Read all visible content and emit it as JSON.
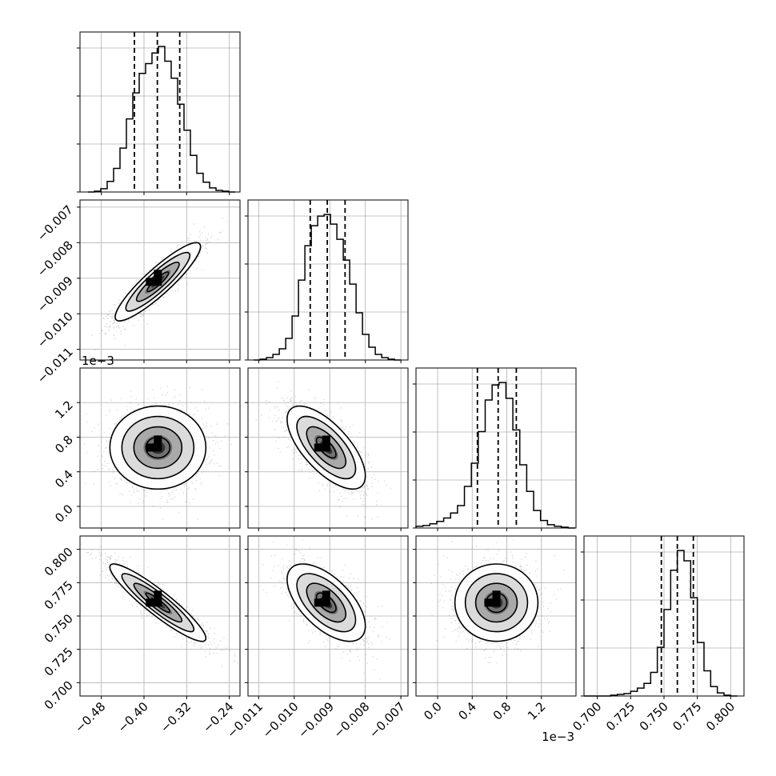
{
  "chart_data": {
    "type": "corner",
    "parameters": [
      {
        "id": "p1",
        "range": [
          -0.52,
          -0.22
        ],
        "ticks": [
          -0.48,
          -0.4,
          -0.32,
          -0.24
        ],
        "tick_labels": [
          "−0.48",
          "−0.40",
          "−0.32",
          "−0.24"
        ],
        "offset_label": ""
      },
      {
        "id": "p2",
        "range": [
          -0.0113,
          -0.0068
        ],
        "ticks": [
          -0.011,
          -0.01,
          -0.009,
          -0.008,
          -0.007
        ],
        "tick_labels": [
          "−0.011",
          "−0.010",
          "−0.009",
          "−0.008",
          "−0.007"
        ],
        "offset_label": ""
      },
      {
        "id": "p3",
        "range": [
          -0.25,
          1.6
        ],
        "ticks": [
          0.0,
          0.4,
          0.8,
          1.2
        ],
        "tick_labels": [
          "0.0",
          "0.4",
          "0.8",
          "1.2"
        ],
        "offset_label": "1e−3"
      },
      {
        "id": "p4",
        "range": [
          0.69,
          0.81
        ],
        "ticks": [
          0.7,
          0.725,
          0.75,
          0.775,
          0.8
        ],
        "tick_labels": [
          "0.700",
          "0.725",
          "0.750",
          "0.775",
          "0.800"
        ],
        "offset_label": ""
      }
    ],
    "diagonal": [
      {
        "param": 0,
        "quantiles": [
          -0.418,
          -0.375,
          -0.333
        ],
        "bin_edges": [
          -0.505,
          -0.493,
          -0.481,
          -0.469,
          -0.457,
          -0.445,
          -0.433,
          -0.421,
          -0.409,
          -0.397,
          -0.385,
          -0.373,
          -0.361,
          -0.349,
          -0.337,
          -0.325,
          -0.313,
          -0.301,
          -0.289,
          -0.277,
          -0.265,
          -0.253,
          -0.241,
          -0.229
        ],
        "counts": [
          0,
          1,
          4,
          13,
          29,
          54,
          90,
          122,
          146,
          158,
          171,
          179,
          161,
          140,
          108,
          76,
          45,
          23,
          12,
          5,
          2,
          1,
          0
        ]
      },
      {
        "param": 1,
        "quantiles": [
          -0.00955,
          -0.00907,
          -0.00857
        ],
        "bin_edges": [
          -0.01114,
          -0.01096,
          -0.01078,
          -0.0106,
          -0.01042,
          -0.01024,
          -0.01006,
          -0.00988,
          -0.0097,
          -0.00952,
          -0.00934,
          -0.00916,
          -0.00898,
          -0.0088,
          -0.00862,
          -0.00844,
          -0.00826,
          -0.00808,
          -0.0079,
          -0.00772,
          -0.00754,
          -0.00736,
          -0.00718,
          -0.007
        ],
        "counts": [
          0,
          1,
          3,
          7,
          14,
          27,
          55,
          100,
          143,
          168,
          180,
          182,
          170,
          151,
          125,
          95,
          59,
          32,
          16,
          7,
          3,
          1,
          0
        ]
      },
      {
        "param": 2,
        "quantiles": [
          0.46,
          0.7,
          0.91
        ],
        "bin_edges": [
          -0.25,
          -0.17,
          -0.09,
          -0.01,
          0.07,
          0.15,
          0.23,
          0.31,
          0.39,
          0.47,
          0.55,
          0.63,
          0.71,
          0.79,
          0.87,
          0.95,
          1.03,
          1.11,
          1.19,
          1.27,
          1.35,
          1.43,
          1.51,
          1.59
        ],
        "counts": [
          2,
          3,
          5,
          8,
          12,
          18,
          27,
          50,
          78,
          116,
          154,
          172,
          175,
          156,
          118,
          76,
          44,
          21,
          9,
          4,
          2,
          1,
          0
        ]
      },
      {
        "param": 3,
        "quantiles": [
          0.748,
          0.76,
          0.772
        ],
        "bin_edges": [
          0.69,
          0.695,
          0.7,
          0.705,
          0.71,
          0.715,
          0.72,
          0.725,
          0.73,
          0.735,
          0.74,
          0.745,
          0.75,
          0.755,
          0.76,
          0.765,
          0.77,
          0.775,
          0.78,
          0.785,
          0.79,
          0.795,
          0.8,
          0.805
        ],
        "counts": [
          0,
          0,
          0,
          0,
          1,
          2,
          3,
          6,
          10,
          16,
          30,
          62,
          110,
          160,
          185,
          172,
          125,
          68,
          32,
          12,
          4,
          1,
          0
        ]
      }
    ],
    "pairs": [
      {
        "row": 1,
        "col": 0,
        "mean": [
          -0.374,
          -0.0091
        ],
        "std": [
          0.04,
          0.00055
        ],
        "corr": 0.9
      },
      {
        "row": 2,
        "col": 0,
        "mean": [
          -0.374,
          0.68
        ],
        "std": [
          0.045,
          0.24
        ],
        "corr": 0.0
      },
      {
        "row": 2,
        "col": 1,
        "mean": [
          -0.0091,
          0.68
        ],
        "std": [
          0.00055,
          0.24
        ],
        "corr": -0.68
      },
      {
        "row": 3,
        "col": 0,
        "mean": [
          -0.374,
          0.76
        ],
        "std": [
          0.045,
          0.0145
        ],
        "corr": -0.92
      },
      {
        "row": 3,
        "col": 1,
        "mean": [
          -0.0091,
          0.76
        ],
        "std": [
          0.00055,
          0.0145
        ],
        "corr": -0.6
      },
      {
        "row": 3,
        "col": 2,
        "mean": [
          0.68,
          0.76
        ],
        "std": [
          0.24,
          0.0145
        ],
        "corr": 0.0
      }
    ],
    "contour_levels_sigma": [
      0.5,
      1.0,
      1.5,
      2.0
    ],
    "grid": true,
    "colors": {
      "hist": "#000000",
      "quantile": "#000000",
      "points": "#888888",
      "grid": "#b0b0b0"
    }
  }
}
